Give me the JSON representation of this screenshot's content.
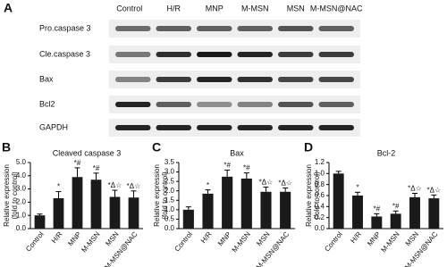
{
  "panel_labels": [
    "A",
    "B",
    "C",
    "D"
  ],
  "blot": {
    "lanes": [
      "Control",
      "H/R",
      "MNP",
      "M-MSN",
      "MSN",
      "M-MSN@NAC"
    ],
    "rows": [
      "Pro.caspase 3",
      "Cle.caspase 3",
      "Bax",
      "Bcl2",
      "GAPDH"
    ]
  },
  "chart_data": [
    {
      "type": "bar",
      "title": "Cleaved caspase 3",
      "ylabel": [
        "Relative expression",
        "(fold to control)"
      ],
      "categories": [
        "Control",
        "H/R",
        "MNP",
        "M-MSN",
        "MSN",
        "M-MSN@NAC"
      ],
      "values": [
        1.0,
        2.3,
        3.9,
        3.7,
        2.4,
        2.35
      ],
      "errors": [
        0.1,
        0.5,
        0.7,
        0.5,
        0.5,
        0.5
      ],
      "annotations": [
        null,
        "*",
        "*#",
        "*#",
        "*Δ☆",
        "*Δ☆"
      ],
      "color": "#1a1a1a",
      "ylim": [
        0,
        5
      ],
      "yticks": [
        {
          "value": 0,
          "label": "0.0"
        },
        {
          "value": 1,
          "label": "1.0"
        },
        {
          "value": 2,
          "label": "2.0"
        },
        {
          "value": 3,
          "label": "3.0"
        },
        {
          "value": 4,
          "label": "4.0"
        },
        {
          "value": 5,
          "label": "5.0"
        }
      ]
    },
    {
      "type": "bar",
      "title": "Bax",
      "ylabel": [
        "Relative expression",
        "(fold to control)"
      ],
      "categories": [
        "Control",
        "H/R",
        "MNP",
        "M-MSN",
        "MSN",
        "M-MSN@NAC"
      ],
      "values": [
        1.0,
        1.85,
        2.75,
        2.65,
        1.95,
        1.95
      ],
      "errors": [
        0.15,
        0.2,
        0.35,
        0.3,
        0.25,
        0.2
      ],
      "annotations": [
        null,
        "*",
        "*#",
        "*#",
        "*Δ☆",
        "*Δ☆"
      ],
      "color": "#1a1a1a",
      "ylim": [
        0,
        3.5
      ],
      "yticks": [
        {
          "value": 0,
          "label": "0.0"
        },
        0.5,
        {
          "value": 1,
          "label": "1.0"
        },
        1.5,
        {
          "value": 2,
          "label": "2.0"
        },
        2.5,
        {
          "value": 3,
          "label": "3.0"
        },
        3.5
      ]
    },
    {
      "type": "bar",
      "title": "Bcl-2",
      "ylabel": [
        "Relative expression",
        "(fold to control)"
      ],
      "categories": [
        "Control",
        "H/R",
        "MNP",
        "M-MSN",
        "MSN",
        "M-MSN@NAC"
      ],
      "values": [
        1.0,
        0.6,
        0.22,
        0.27,
        0.57,
        0.55
      ],
      "errors": [
        0.04,
        0.06,
        0.05,
        0.05,
        0.07,
        0.06
      ],
      "annotations": [
        null,
        "*",
        "*#",
        "*#",
        "*Δ☆",
        "*Δ☆"
      ],
      "color": "#1a1a1a",
      "ylim": [
        0,
        1.2
      ],
      "yticks": [
        {
          "value": 0,
          "label": "0.0"
        },
        0.2,
        0.4,
        0.6,
        0.8,
        {
          "value": 1,
          "label": "1.0"
        },
        1.2
      ]
    }
  ]
}
